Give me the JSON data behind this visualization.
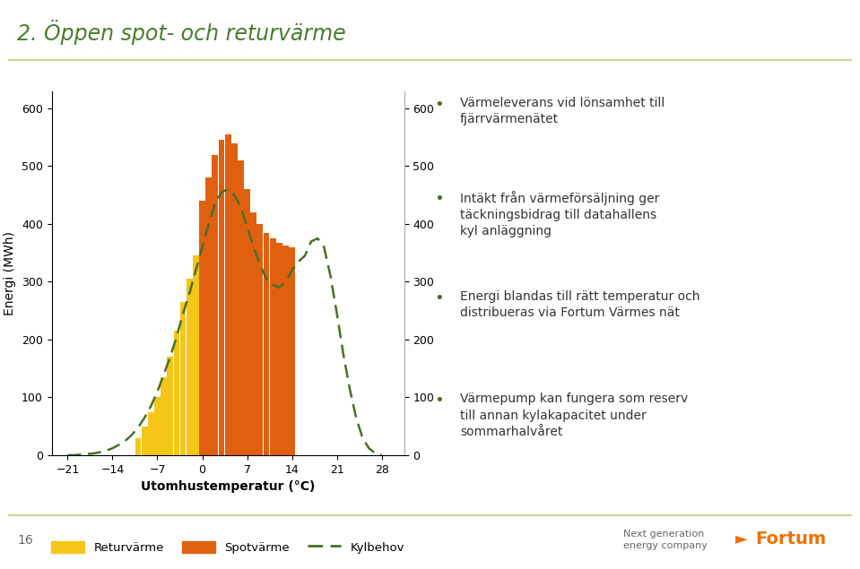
{
  "title": "2. Öppen spot- och returvärme",
  "title_color": "#4a7c2f",
  "xlabel": "Utomhustemperatur (°C)",
  "ylabel": "Energi (MWh)",
  "xticks": [
    -21,
    -14,
    -7,
    0,
    7,
    14,
    21,
    28
  ],
  "yticks": [
    0,
    100,
    200,
    300,
    400,
    500,
    600
  ],
  "ylim": [
    0,
    630
  ],
  "xlim": [
    -23.5,
    31.5
  ],
  "bar_width": 0.95,
  "returvarme_color": "#f5c518",
  "spotvärme_color": "#e06010",
  "kylbehov_color": "#4a6e28",
  "legend_labels": [
    "Returvärme",
    "Spotvärme",
    "Kylbehov"
  ],
  "returvarme_x": [
    -10,
    -9,
    -8,
    -7,
    -6,
    -5,
    -4,
    -3,
    -2,
    -1
  ],
  "returvarme_heights": [
    30,
    50,
    75,
    100,
    135,
    170,
    215,
    265,
    305,
    345
  ],
  "spotvärme_x": [
    0,
    1,
    2,
    3,
    4,
    5,
    6,
    7,
    8,
    9,
    10,
    11,
    12,
    13,
    14
  ],
  "spotvärme_heights": [
    440,
    480,
    520,
    545,
    555,
    540,
    510,
    460,
    420,
    400,
    385,
    375,
    368,
    362,
    360
  ],
  "kylbehov_x": [
    -21,
    -20,
    -19,
    -18,
    -17,
    -16,
    -15,
    -14,
    -13,
    -12,
    -11,
    -10,
    -9,
    -8,
    -7,
    -6,
    -5,
    -4,
    -3,
    -2,
    -1,
    0,
    1,
    2,
    3,
    4,
    5,
    6,
    7,
    8,
    9,
    10,
    11,
    12,
    13,
    14,
    15,
    16,
    17,
    18,
    19,
    20,
    21,
    22,
    23,
    24,
    25,
    26,
    27,
    28
  ],
  "kylbehov_y": [
    0,
    0,
    1,
    2,
    3,
    5,
    8,
    12,
    18,
    25,
    35,
    48,
    65,
    85,
    110,
    140,
    170,
    205,
    245,
    280,
    320,
    360,
    400,
    435,
    455,
    460,
    450,
    430,
    395,
    360,
    330,
    305,
    295,
    290,
    300,
    320,
    335,
    345,
    370,
    375,
    360,
    310,
    245,
    175,
    115,
    65,
    30,
    12,
    3,
    0
  ],
  "background_color": "#ffffff",
  "bullet_color": "#4a6e28",
  "text_color": "#333333",
  "separator_color": "#c8d88a",
  "footer_text_color": "#666666",
  "fortum_color": "#f07000",
  "page_number": "16"
}
